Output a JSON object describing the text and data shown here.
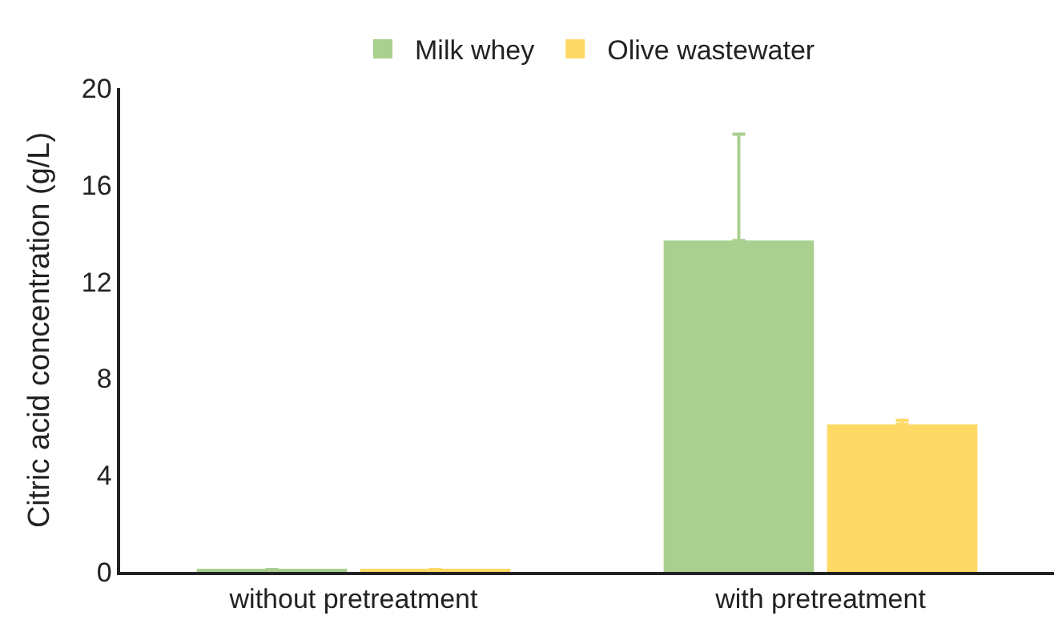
{
  "chart_data": {
    "type": "bar",
    "ylabel": "Citric acid concentration (g/L)",
    "categories": [
      "without pretreatment",
      "with pretreatment"
    ],
    "series": [
      {
        "name": "Milk whey",
        "color": "#a9d08e",
        "values": [
          0.1,
          13.7
        ],
        "errors": [
          null,
          [
            13.7,
            18.1
          ]
        ]
      },
      {
        "name": "Olive wastewater",
        "color": "#ffd966",
        "values": [
          0.1,
          6.1
        ],
        "errors": [
          null,
          [
            6.1,
            6.27
          ]
        ]
      }
    ],
    "ylim": [
      0,
      20
    ],
    "yticks": [
      0,
      4,
      8,
      12,
      16,
      20
    ],
    "legend": "top"
  }
}
